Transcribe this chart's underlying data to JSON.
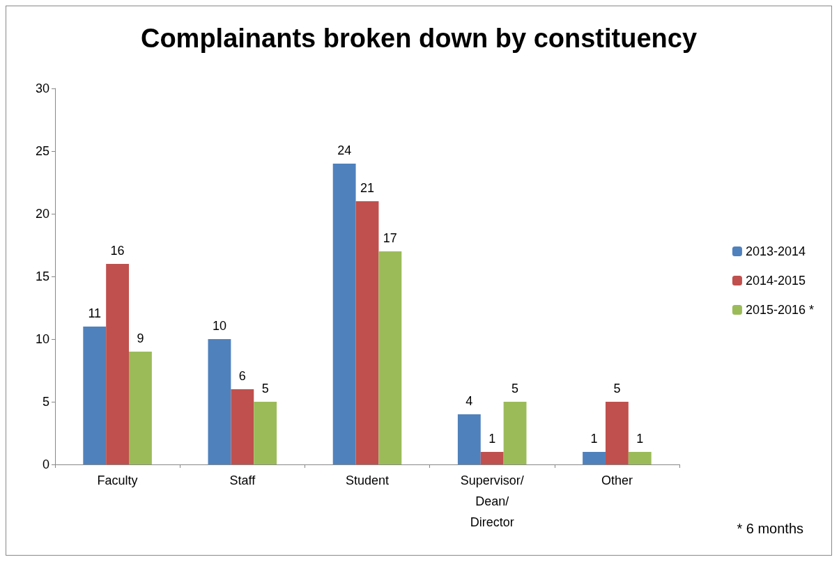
{
  "chart_data": {
    "type": "bar",
    "title": "Complainants broken down by constituency",
    "categories": [
      "Faculty",
      "Staff",
      "Student",
      "Supervisor/Dean/Director",
      "Other"
    ],
    "series": [
      {
        "name": "2013-2014",
        "color": "#4f81bd",
        "values": [
          11,
          10,
          24,
          4,
          1
        ]
      },
      {
        "name": "2014-2015",
        "color": "#c0504d",
        "values": [
          16,
          6,
          21,
          1,
          5
        ]
      },
      {
        "name": "2015-2016 *",
        "color": "#9bbb59",
        "values": [
          9,
          5,
          17,
          5,
          1
        ]
      }
    ],
    "ylim": [
      0,
      30
    ],
    "yticks": [
      0,
      5,
      10,
      15,
      20,
      25,
      30
    ],
    "grid": false,
    "legend": "right",
    "data_labels": true,
    "annotations": [
      "* 6 months"
    ]
  }
}
